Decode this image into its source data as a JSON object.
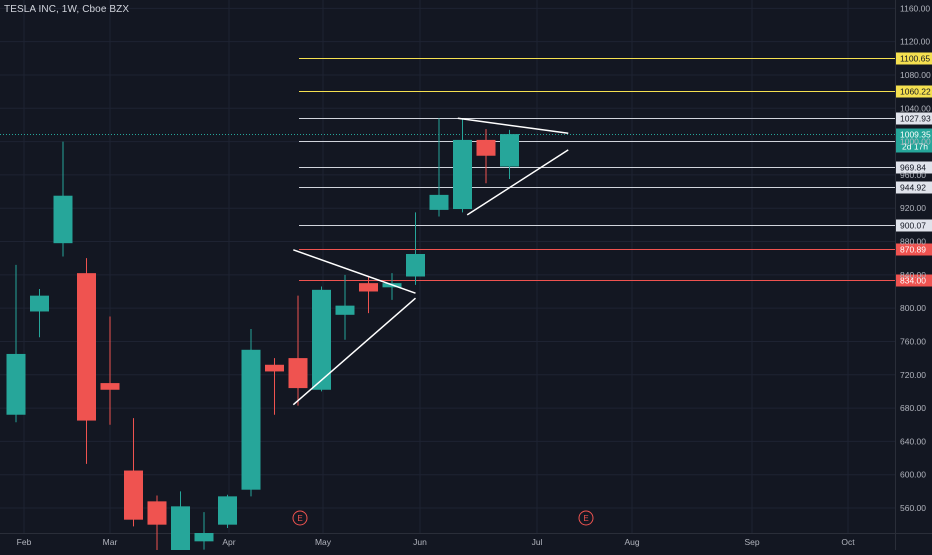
{
  "header": {
    "symbol_title": "TESLA INC, 1W, Cboe BZX"
  },
  "colors": {
    "background": "#131722",
    "grid": "#1e2332",
    "axis_text": "#b2b5be",
    "up": "#26a69a",
    "down": "#ef5350",
    "yellow_line": "#f5e050",
    "white_line": "#d1d4dc",
    "red_line": "#ef5350",
    "current_line": "#26a69a",
    "pattern_lines": "#ffffff"
  },
  "price_axis": {
    "ticks": [
      "1160.00",
      "1120.00",
      "1080.00",
      "1040.00",
      "1000.00",
      "960.00",
      "920.00",
      "880.00",
      "840.00",
      "800.00",
      "760.00",
      "720.00",
      "680.00",
      "640.00",
      "600.00",
      "560.00"
    ]
  },
  "time_axis": {
    "ticks": [
      "Feb",
      "Mar",
      "Apr",
      "May",
      "Jun",
      "Jul",
      "Aug",
      "Sep",
      "Oct"
    ]
  },
  "earnings_markers": [
    "E",
    "E"
  ],
  "current_price": {
    "value": "1009.35",
    "countdown": "2d 17h"
  },
  "horizontal_levels": [
    {
      "value": 1100.65,
      "label": "1100.65",
      "style": "yellow"
    },
    {
      "value": 1060.22,
      "label": "1060.22",
      "style": "yellow"
    },
    {
      "value": 1027.93,
      "label": "1027.93",
      "style": "white"
    },
    {
      "value": 1000.45,
      "label": "1000.45",
      "style": "white"
    },
    {
      "value": 969.84,
      "label": "969.84",
      "style": "white"
    },
    {
      "value": 944.92,
      "label": "944.92",
      "style": "white"
    },
    {
      "value": 900.07,
      "label": "900.07",
      "style": "white"
    },
    {
      "value": 870.89,
      "label": "870.89",
      "style": "red"
    },
    {
      "value": 834.0,
      "label": "834.00",
      "style": "red"
    }
  ],
  "chart_data": {
    "type": "candlestick",
    "title": "TESLA INC, 1W, Cboe BZX",
    "ylim": [
      530,
      1170
    ],
    "candles": [
      {
        "o": 672,
        "h": 852,
        "l": 663,
        "c": 745
      },
      {
        "o": 796,
        "h": 823,
        "l": 765,
        "c": 815
      },
      {
        "o": 878,
        "h": 1000,
        "l": 862,
        "c": 935
      },
      {
        "o": 842,
        "h": 860,
        "l": 613,
        "c": 665
      },
      {
        "o": 710,
        "h": 790,
        "l": 660,
        "c": 702
      },
      {
        "o": 605,
        "h": 668,
        "l": 538,
        "c": 546
      },
      {
        "o": 568,
        "h": 575,
        "l": 500,
        "c": 540
      },
      {
        "o": 508,
        "h": 580,
        "l": 502,
        "c": 562
      },
      {
        "o": 520,
        "h": 555,
        "l": 510,
        "c": 530
      },
      {
        "o": 540,
        "h": 576,
        "l": 536,
        "c": 574
      },
      {
        "o": 582,
        "h": 775,
        "l": 574,
        "c": 750
      },
      {
        "o": 732,
        "h": 740,
        "l": 672,
        "c": 724
      },
      {
        "o": 740,
        "h": 815,
        "l": 683,
        "c": 704
      },
      {
        "o": 702,
        "h": 826,
        "l": 700,
        "c": 822
      },
      {
        "o": 792,
        "h": 840,
        "l": 762,
        "c": 803
      },
      {
        "o": 830,
        "h": 838,
        "l": 794,
        "c": 820
      },
      {
        "o": 825,
        "h": 842,
        "l": 810,
        "c": 830
      },
      {
        "o": 838,
        "h": 915,
        "l": 828,
        "c": 865
      },
      {
        "o": 918,
        "h": 1028,
        "l": 910,
        "c": 936
      },
      {
        "o": 919,
        "h": 1027,
        "l": 915,
        "c": 1002
      },
      {
        "o": 1002,
        "h": 1015,
        "l": 950,
        "c": 983
      },
      {
        "o": 970,
        "h": 1014,
        "l": 955,
        "c": 1009
      }
    ],
    "trendlines": [
      {
        "from": {
          "week": 11.8,
          "price": 870
        },
        "to": {
          "week": 17.0,
          "price": 818
        }
      },
      {
        "from": {
          "week": 11.8,
          "price": 684
        },
        "to": {
          "week": 17.0,
          "price": 812
        }
      },
      {
        "from": {
          "week": 18.8,
          "price": 1028
        },
        "to": {
          "week": 23.5,
          "price": 1010
        }
      },
      {
        "from": {
          "week": 19.2,
          "price": 912
        },
        "to": {
          "week": 23.5,
          "price": 990
        }
      }
    ]
  }
}
